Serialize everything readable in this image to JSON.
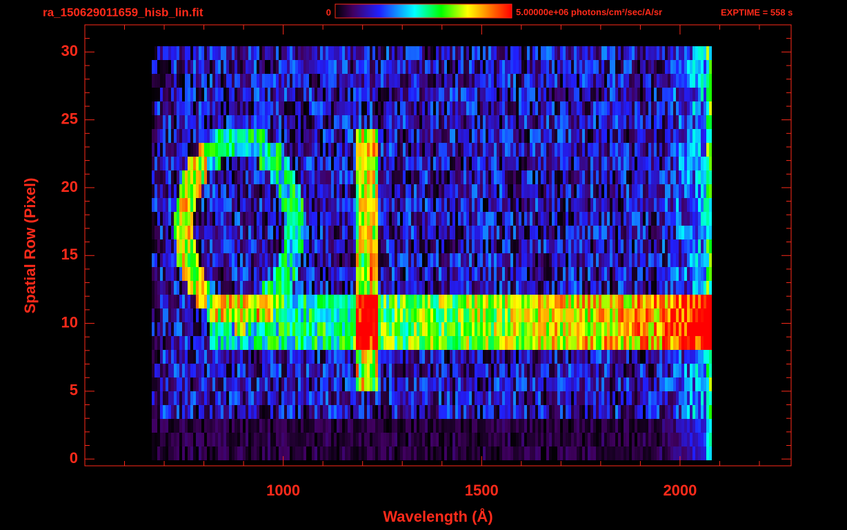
{
  "chart_data": {
    "type": "image",
    "title": "ra_150629011659_hisb_lin.fit",
    "colorbar": {
      "min": 0,
      "max": {
        "value": 5000000,
        "label": "5.00000e+06"
      },
      "units": "photons/cm²/sec/A/sr"
    },
    "annotation": "EXPTIME = 558 s",
    "xlabel": "Wavelength (Å)",
    "ylabel": "Spatial Row (Pixel)",
    "xlim": [
      500,
      2280
    ],
    "ylim": [
      -0.5,
      32
    ],
    "xticks": [
      1000,
      1500,
      2000
    ],
    "yticks": [
      0,
      5,
      10,
      15,
      20,
      25,
      30
    ],
    "xminorticks": [
      600,
      700,
      800,
      900,
      1100,
      1200,
      1300,
      1400,
      1600,
      1700,
      1800,
      1900,
      2100,
      2200
    ],
    "yminorticks": [
      1,
      2,
      3,
      4,
      6,
      7,
      8,
      9,
      11,
      12,
      13,
      14,
      16,
      17,
      18,
      19,
      21,
      22,
      23,
      24,
      26,
      27,
      28,
      29,
      31
    ],
    "color": "#ff2a1a"
  }
}
